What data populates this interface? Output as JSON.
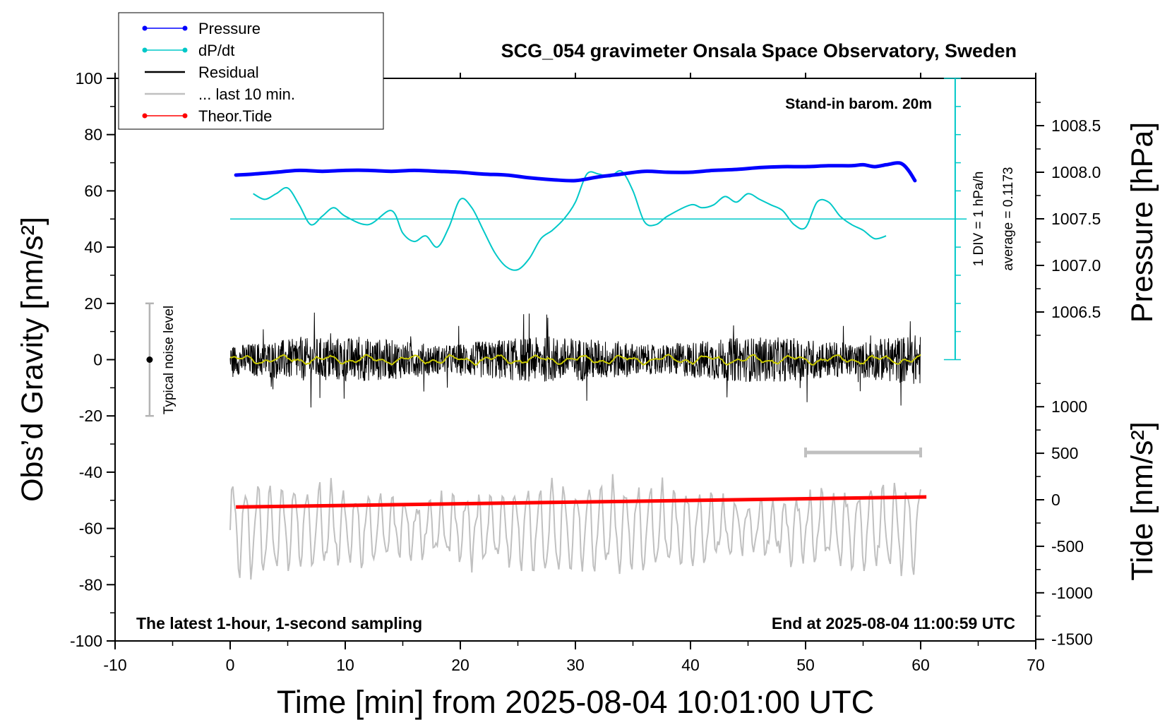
{
  "chart_data": {
    "type": "line",
    "title": "SCG_054 gravimeter Onsala Space Observatory, Sweden",
    "xlabel": "Time [min] from 2025-08-04 10:01:00 UTC",
    "ylabel_left": "Obs’d Gravity [nm/s²]",
    "ylabel_pressure": "Pressure [hPa]",
    "ylabel_tide": "Tide [nm/s²]",
    "xlim": [
      -10,
      70
    ],
    "ylim": [
      -100,
      100
    ],
    "x_ticks": [
      "-10",
      "0",
      "10",
      "20",
      "30",
      "40",
      "50",
      "60",
      "70"
    ],
    "y_ticks": [
      "100",
      "80",
      "60",
      "40",
      "20",
      "0",
      "-20",
      "-40",
      "-60",
      "-80",
      "-100"
    ],
    "pressure_ticks": [
      "1008.5",
      "1008.0",
      "1007.5",
      "1007.0",
      "1006.5"
    ],
    "pressure_tick_values": [
      1008.5,
      1008.0,
      1007.5,
      1007.0,
      1006.5
    ],
    "tide_ticks": [
      "1000",
      "500",
      "0",
      "-500",
      "-1000",
      "-1500"
    ],
    "tide_tick_values": [
      1000,
      500,
      0,
      -500,
      -1000,
      -1500
    ],
    "grid": false,
    "legend_position": "top-left",
    "legend": [
      {
        "label": "Pressure",
        "color": "#0000ff",
        "marker": true
      },
      {
        "label": "dP/dt",
        "color": "#00c8c8",
        "marker": true
      },
      {
        "label": "Residual",
        "color": "#000000",
        "marker": false
      },
      {
        "label": "... last 10 min.",
        "color": "#c0c0c0",
        "marker": false
      },
      {
        "label": "Theor.Tide",
        "color": "#ff0000",
        "marker": true
      }
    ],
    "annotations": {
      "barometer": "Stand-in barom. 20m",
      "div_note": "1 DIV = 1 hPa/h",
      "average_note": "average = 0.1173",
      "noise_label": "Typical noise level",
      "bottom_left": "The latest 1-hour, 1-second sampling",
      "bottom_right": "End at 2025-08-04 11:00:59 UTC"
    },
    "noise_level": {
      "x": -7,
      "y_center": 0,
      "y_range": [
        -20,
        20
      ]
    },
    "last_10_min_bar": {
      "x_range": [
        50,
        60
      ],
      "y": -33
    },
    "dpdt_average_line": {
      "x_range": [
        0,
        64
      ],
      "y": 50
    },
    "div_axis": {
      "x": 63,
      "y_range": [
        0,
        100
      ],
      "div_step": 10
    },
    "series": [
      {
        "name": "Pressure",
        "color": "#0000ff",
        "unit": "hPa",
        "x": [
          0.5,
          2,
          4,
          6,
          8,
          10,
          12,
          14,
          16,
          18,
          20,
          22,
          24,
          26,
          28,
          30,
          32,
          34,
          36,
          38,
          40,
          42,
          44,
          46,
          48,
          50,
          52,
          54,
          55,
          56,
          57,
          58,
          58.5,
          59,
          59.5
        ],
        "values": [
          1007.97,
          1007.98,
          1008.0,
          1008.02,
          1008.01,
          1008.02,
          1008.02,
          1008.01,
          1008.02,
          1008.01,
          1008.0,
          1007.98,
          1007.97,
          1007.94,
          1007.92,
          1007.91,
          1007.95,
          1007.98,
          1008.01,
          1008.0,
          1008.0,
          1008.02,
          1008.03,
          1008.05,
          1008.06,
          1008.06,
          1008.07,
          1008.07,
          1008.08,
          1008.06,
          1008.08,
          1008.1,
          1008.08,
          1008.01,
          1007.91
        ]
      },
      {
        "name": "dP/dt",
        "color": "#00c8c8",
        "unit": "nm/s² scale",
        "x": [
          2,
          3,
          4,
          5,
          6,
          7,
          8,
          9,
          10,
          12,
          14,
          15,
          16,
          17,
          18,
          19,
          20,
          21,
          22,
          23,
          24,
          25,
          26,
          27,
          28,
          29,
          30,
          31,
          32,
          33,
          34,
          35,
          36,
          37,
          38,
          40,
          41,
          42,
          43,
          44,
          45,
          46,
          47,
          48,
          49,
          50,
          51,
          52,
          53,
          54,
          55,
          56,
          57
        ],
        "values": [
          59,
          57,
          59,
          61,
          55,
          48,
          51,
          54,
          51,
          48,
          53,
          45,
          42,
          44,
          40,
          47,
          57,
          54,
          46,
          38,
          33,
          32,
          36,
          43,
          46,
          50,
          56,
          66,
          66,
          65,
          67,
          60,
          49,
          48,
          51,
          55,
          54,
          55,
          58,
          56,
          59,
          57,
          55,
          53,
          48,
          47,
          56,
          56,
          51,
          48,
          46,
          43,
          44
        ]
      },
      {
        "name": "Theor.Tide",
        "color": "#ff0000",
        "unit": "nm/s²",
        "x": [
          0.5,
          60.5
        ],
        "values": [
          -78,
          30
        ]
      }
    ],
    "residual": {
      "color": "#000000",
      "x_range": [
        0,
        60
      ],
      "amplitude_range": [
        -20,
        20
      ],
      "center": 0
    },
    "residual_smoothed": {
      "color": "#c8c800",
      "center": 0,
      "amplitude": 2
    },
    "last_10_min": {
      "color": "#c0c0c0",
      "x_range": [
        0,
        60
      ],
      "center": -60,
      "amplitude_range": [
        -80,
        -40
      ]
    }
  }
}
